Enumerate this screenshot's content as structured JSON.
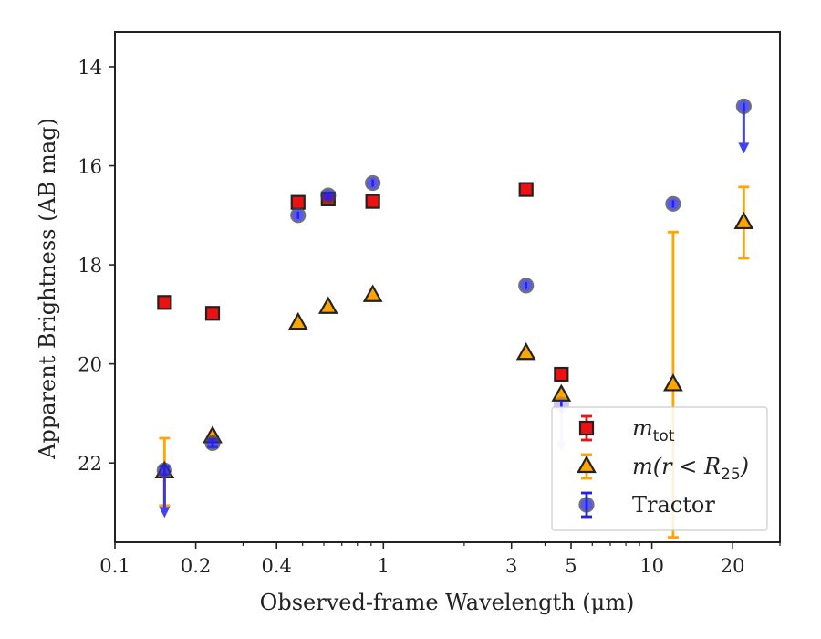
{
  "chart_data": {
    "type": "scatter",
    "title": "",
    "xlabel": "Observed-frame Wavelength (μm)",
    "ylabel": "Apparent Brightness (AB mag)",
    "xscale": "log",
    "xlim": [
      0.1,
      30
    ],
    "ylim": [
      23.6,
      13.3
    ],
    "y_inverted": true,
    "x_ticks": [
      0.1,
      0.2,
      0.4,
      1,
      3,
      5,
      10,
      20
    ],
    "x_tick_labels": [
      "0.1",
      "0.2",
      "0.4",
      "1",
      "3",
      "5",
      "10",
      "20"
    ],
    "y_ticks": [
      14,
      16,
      18,
      20,
      22
    ],
    "y_tick_labels": [
      "14",
      "16",
      "18",
      "20",
      "22"
    ],
    "legend": {
      "placement": "lower-right",
      "entries": [
        {
          "series": "mtot",
          "main": "m",
          "sub": "tot",
          "tail": ""
        },
        {
          "series": "mr25",
          "main": "m(r < R",
          "sub": "25",
          "tail": ")"
        },
        {
          "series": "tractor",
          "main": "Tractor",
          "sub": "",
          "tail": ""
        }
      ]
    },
    "series": [
      {
        "id": "mtot",
        "marker": "square",
        "color": "#ee1111",
        "errcolor": "#ee1111",
        "points": [
          {
            "x": 0.153,
            "y": 18.76,
            "err": 0.05
          },
          {
            "x": 0.231,
            "y": 18.98,
            "err": 0.05
          },
          {
            "x": 0.481,
            "y": 16.74,
            "err": 0.05
          },
          {
            "x": 0.623,
            "y": 16.67,
            "err": 0.12
          },
          {
            "x": 0.913,
            "y": 16.72,
            "err": 0.05
          },
          {
            "x": 3.4,
            "y": 16.48,
            "err": 0.05
          },
          {
            "x": 4.6,
            "y": 20.21,
            "err": 0.05
          }
        ]
      },
      {
        "id": "mr25",
        "marker": "triangle",
        "color": "#ffa500",
        "errcolor": "#ffa500",
        "points": [
          {
            "x": 0.153,
            "y": 22.18,
            "err": 0.68
          },
          {
            "x": 0.231,
            "y": 21.47,
            "err": 0.05
          },
          {
            "x": 0.481,
            "y": 19.18,
            "err": 0.05
          },
          {
            "x": 0.623,
            "y": 18.86,
            "err": 0.05
          },
          {
            "x": 0.913,
            "y": 18.62,
            "err": 0.05
          },
          {
            "x": 3.4,
            "y": 19.79,
            "err": 0.05
          },
          {
            "x": 4.6,
            "y": 20.63,
            "err": 0.05
          },
          {
            "x": 12,
            "y": 20.42,
            "err": 3.08
          },
          {
            "x": 22,
            "y": 17.15,
            "err": 0.72
          }
        ]
      },
      {
        "id": "tractor",
        "marker": "circle",
        "color": "#2222ee",
        "errcolor": "#2222ee",
        "points": [
          {
            "x": 0.153,
            "y": 22.15,
            "err": 0.08,
            "upper_limit": true
          },
          {
            "x": 0.231,
            "y": 21.6,
            "err": 0.08
          },
          {
            "x": 0.481,
            "y": 17.0,
            "err": 0.05
          },
          {
            "x": 0.623,
            "y": 16.6,
            "err": 0.05
          },
          {
            "x": 0.913,
            "y": 16.35,
            "err": 0.05
          },
          {
            "x": 3.4,
            "y": 18.42,
            "err": 0.05
          },
          {
            "x": 4.6,
            "y": 20.82,
            "err": 0.05,
            "upper_limit": true,
            "faded": true
          },
          {
            "x": 12,
            "y": 16.77,
            "err": 0.05
          },
          {
            "x": 22,
            "y": 14.8,
            "err": 0.05,
            "upper_limit": true
          }
        ]
      }
    ]
  }
}
